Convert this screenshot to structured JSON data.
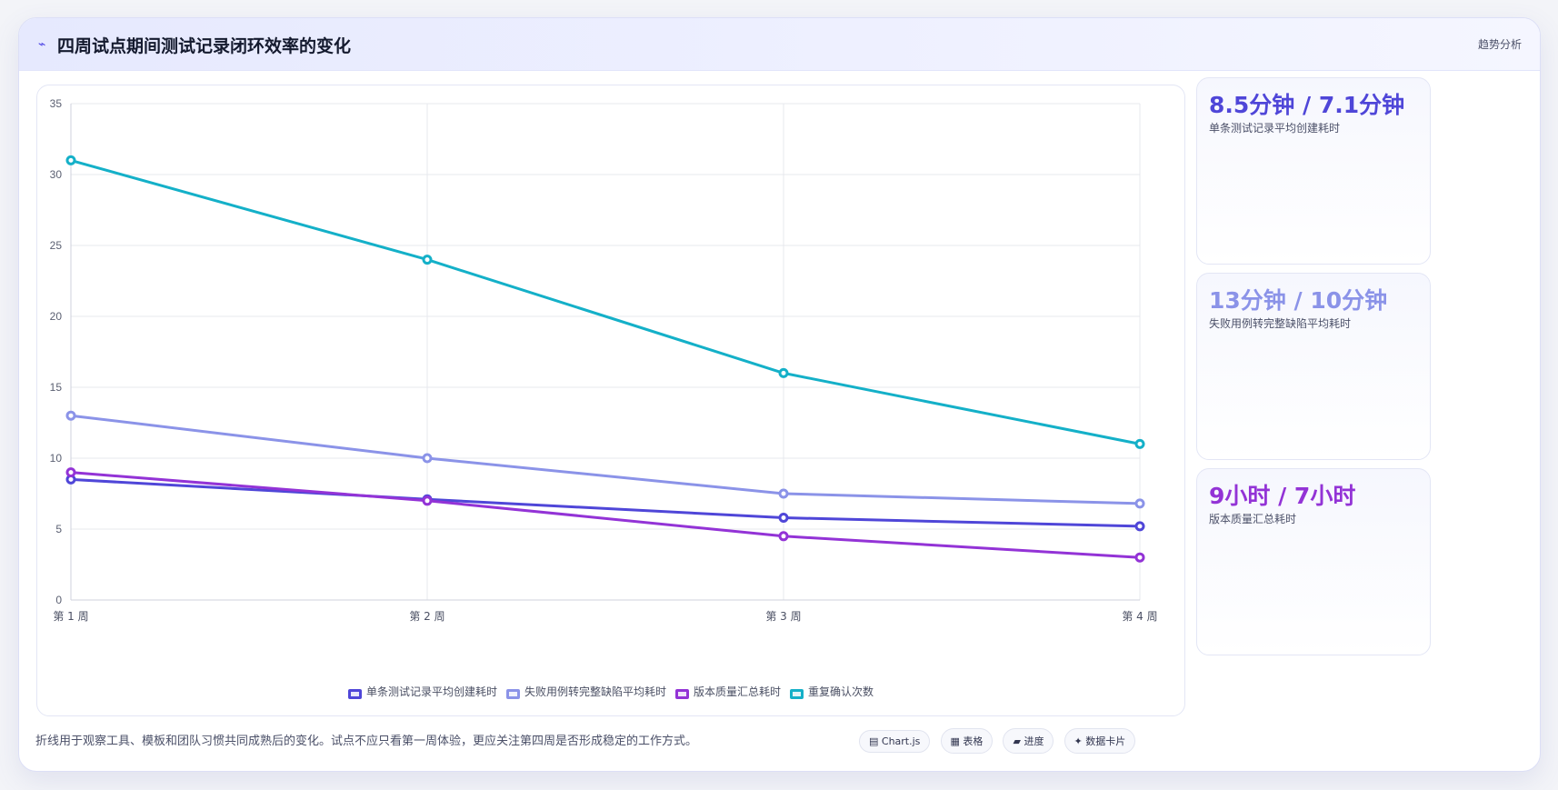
{
  "header": {
    "icon": "trend-icon",
    "title": "四周试点期间测试记录闭环效率的变化",
    "right_label": "趋势分析"
  },
  "chart_data": {
    "type": "line",
    "categories": [
      "第 1 周",
      "第 2 周",
      "第 3 周",
      "第 4 周"
    ],
    "ylim": [
      0,
      35
    ],
    "yticks": [
      0,
      5,
      10,
      15,
      20,
      25,
      30,
      35
    ],
    "grid": true,
    "legend_position": "bottom",
    "series": [
      {
        "name": "单条测试记录平均创建耗时",
        "color": "#4f46d8",
        "values": [
          8.5,
          7.1,
          5.8,
          5.2
        ]
      },
      {
        "name": "失败用例转完整缺陷平均耗时",
        "color": "#8b93e8",
        "values": [
          13,
          10,
          7.5,
          6.8
        ]
      },
      {
        "name": "版本质量汇总耗时",
        "color": "#9333d6",
        "values": [
          9,
          7,
          4.5,
          3
        ]
      },
      {
        "name": "重复确认次数",
        "color": "#14b0c8",
        "values": [
          31,
          24,
          16,
          11
        ]
      }
    ]
  },
  "kpis": [
    {
      "value": "8.5分钟 / 7.1分钟",
      "label": "单条测试记录平均创建耗时",
      "color": "#4f46d8"
    },
    {
      "value": "13分钟 / 10分钟",
      "label": "失败用例转完整缺陷平均耗时",
      "color": "#8b93e8"
    },
    {
      "value": "9小时 / 7小时",
      "label": "版本质量汇总耗时",
      "color": "#9333d6"
    }
  ],
  "footer": {
    "note": "折线用于观察工具、模板和团队习惯共同成熟后的变化。试点不应只看第一周体验，更应关注第四周是否形成稳定的工作方式。",
    "chips": [
      "▤ Chart.js",
      "▦ 表格",
      "▰ 进度",
      "✦ 数据卡片"
    ]
  }
}
